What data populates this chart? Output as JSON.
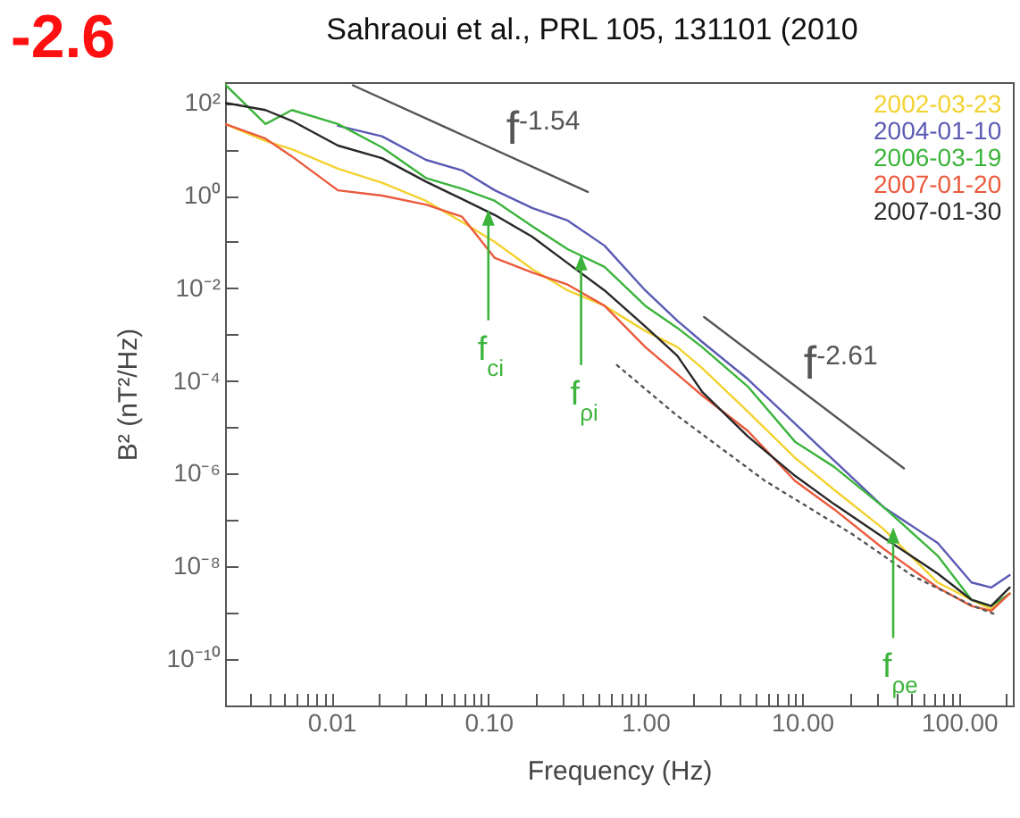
{
  "chart_data": {
    "type": "line",
    "title": "Sahraoui et al., PRL 105, 131101 (2010",
    "xlabel": "Frequency (Hz)",
    "ylabel": "B² (nT²/Hz)",
    "log": "xy",
    "legend": "top right",
    "xlim": [
      0.0021,
      220
    ],
    "ylim": [
      1e-11,
      280
    ],
    "xticks": [
      {
        "value": 0.003,
        "label": null
      },
      {
        "value": 0.004,
        "label": null
      },
      {
        "value": 0.005,
        "label": null
      },
      {
        "value": 0.006,
        "label": null
      },
      {
        "value": 0.007,
        "label": null
      },
      {
        "value": 0.008,
        "label": null
      },
      {
        "value": 0.009,
        "label": null
      },
      {
        "value": 0.01,
        "label": "0.01"
      },
      {
        "value": 0.02,
        "label": null
      },
      {
        "value": 0.03,
        "label": null
      },
      {
        "value": 0.04,
        "label": null
      },
      {
        "value": 0.05,
        "label": null
      },
      {
        "value": 0.06,
        "label": null
      },
      {
        "value": 0.07,
        "label": null
      },
      {
        "value": 0.08,
        "label": null
      },
      {
        "value": 0.09,
        "label": null
      },
      {
        "value": 0.1,
        "label": "0.10"
      },
      {
        "value": 0.2,
        "label": null
      },
      {
        "value": 0.3,
        "label": null
      },
      {
        "value": 0.4,
        "label": null
      },
      {
        "value": 0.5,
        "label": null
      },
      {
        "value": 0.6,
        "label": null
      },
      {
        "value": 0.7,
        "label": null
      },
      {
        "value": 0.8,
        "label": null
      },
      {
        "value": 0.9,
        "label": null
      },
      {
        "value": 1,
        "label": "1.00"
      },
      {
        "value": 2,
        "label": null
      },
      {
        "value": 3,
        "label": null
      },
      {
        "value": 4,
        "label": null
      },
      {
        "value": 5,
        "label": null
      },
      {
        "value": 6,
        "label": null
      },
      {
        "value": 7,
        "label": null
      },
      {
        "value": 8,
        "label": null
      },
      {
        "value": 9,
        "label": null
      },
      {
        "value": 10,
        "label": "10.00"
      },
      {
        "value": 20,
        "label": null
      },
      {
        "value": 30,
        "label": null
      },
      {
        "value": 40,
        "label": null
      },
      {
        "value": 50,
        "label": null
      },
      {
        "value": 60,
        "label": null
      },
      {
        "value": 70,
        "label": null
      },
      {
        "value": 80,
        "label": null
      },
      {
        "value": 90,
        "label": null
      },
      {
        "value": 100,
        "label": "100.00"
      },
      {
        "value": 200,
        "label": null
      }
    ],
    "yticks": [
      {
        "value": 1e-10,
        "label": "10⁻¹⁰"
      },
      {
        "value": 1e-09,
        "label": null
      },
      {
        "value": 1e-08,
        "label": "10⁻⁸"
      },
      {
        "value": 1e-07,
        "label": null
      },
      {
        "value": 1e-06,
        "label": "10⁻⁶"
      },
      {
        "value": 1e-05,
        "label": null
      },
      {
        "value": 0.0001,
        "label": "10⁻⁴"
      },
      {
        "value": 0.001,
        "label": null
      },
      {
        "value": 0.01,
        "label": "10⁻²"
      },
      {
        "value": 0.1,
        "label": null
      },
      {
        "value": 1,
        "label": "10⁰"
      },
      {
        "value": 10,
        "label": null
      },
      {
        "value": 100,
        "label": "10²"
      }
    ],
    "x": [
      0.0021,
      0.0038,
      0.0056,
      0.011,
      0.021,
      0.04,
      0.068,
      0.11,
      0.19,
      0.32,
      0.55,
      1,
      1.6,
      2.3,
      4.5,
      9,
      16,
      33,
      73,
      120,
      160,
      210
    ],
    "series": [
      {
        "name": "2002-03-23",
        "color": "#f2d230",
        "values": [
          35,
          15,
          10,
          3.8,
          1.9,
          0.77,
          0.27,
          0.1,
          0.026,
          0.009,
          0.0042,
          0.0012,
          0.00054,
          0.00019,
          2.2e-05,
          2.2e-06,
          4.5e-07,
          6.4e-08,
          4.5e-09,
          1.9e-09,
          1.2e-09,
          2.6e-09
        ]
      },
      {
        "name": "2004-01-10",
        "color": "#5a5ab4",
        "values": [
          null,
          null,
          null,
          32,
          19,
          5.9,
          3.5,
          1.3,
          0.54,
          0.29,
          0.083,
          0.009,
          0.002,
          0.0007,
          0.00011,
          1.2e-05,
          1.9e-06,
          1.9e-07,
          3.2e-08,
          4.5e-09,
          3.5e-09,
          6.5e-09
        ]
      },
      {
        "name": "2006-03-19",
        "color": "#3cb43c",
        "values": [
          250,
          35,
          70,
          35,
          11,
          2.4,
          1.4,
          0.77,
          0.22,
          0.07,
          0.029,
          0.0042,
          0.0014,
          0.00054,
          7.6e-05,
          4.9e-06,
          1.4e-06,
          1.9e-07,
          1.7e-08,
          1.9e-09,
          1.4e-09,
          2.6e-09
        ]
      },
      {
        "name": "2007-01-20",
        "color": "#eb5a3c",
        "values": [
          35,
          17,
          7,
          1.3,
          1.0,
          0.64,
          0.35,
          0.045,
          0.022,
          0.012,
          0.0042,
          0.00054,
          0.00014,
          4.9e-05,
          8.4e-06,
          7e-07,
          1.7e-07,
          2.4e-08,
          3.5e-09,
          1.4e-09,
          1.1e-09,
          2.6e-09
        ]
      },
      {
        "name": "2007-01-30",
        "color": "#282828",
        "values": [
          100,
          70,
          41,
          12,
          6.4,
          2,
          0.84,
          0.38,
          0.13,
          0.035,
          0.009,
          0.0015,
          0.00035,
          5.9e-05,
          6.4e-06,
          9e-07,
          2.2e-07,
          4.2e-08,
          7e-09,
          1.9e-09,
          1.4e-09,
          3.5e-09
        ]
      },
      {
        "type": "line",
        "color": "#555555",
        "x": [
          0.0137,
          0.43
        ],
        "values": [
          240,
          1.2
        ]
      },
      {
        "type": "line",
        "color": "#555555",
        "x": [
          2.37,
          44.5
        ],
        "values": [
          0.0024,
          1.3e-06
        ]
      },
      {
        "type": "line",
        "color": "#555555",
        "line_style": "dotted",
        "x": [
          0.66,
          1.56,
          5.8,
          21,
          50,
          123,
          173
        ],
        "values": [
          0.00022,
          1.9e-05,
          7e-07,
          4.9e-08,
          6.4e-09,
          1.4e-09,
          9e-10
        ]
      }
    ],
    "annotations": [
      "-2.6",
      {
        "text": "f$^{-1.54}$",
        "x": 0.108,
        "y": 10
      },
      {
        "text": "f$^{-2.61}$",
        "x": 8.5,
        "y": 8.5e-05
      },
      {
        "text": "f$_{ci}$",
        "x": 0.1,
        "y": 0.5
      },
      {
        "text": "f$_{ρi}$",
        "x": 0.39,
        "y": 0.054
      },
      {
        "text": "f$_{ρe}$",
        "x": 38,
        "y": 7e-08
      }
    ]
  }
}
